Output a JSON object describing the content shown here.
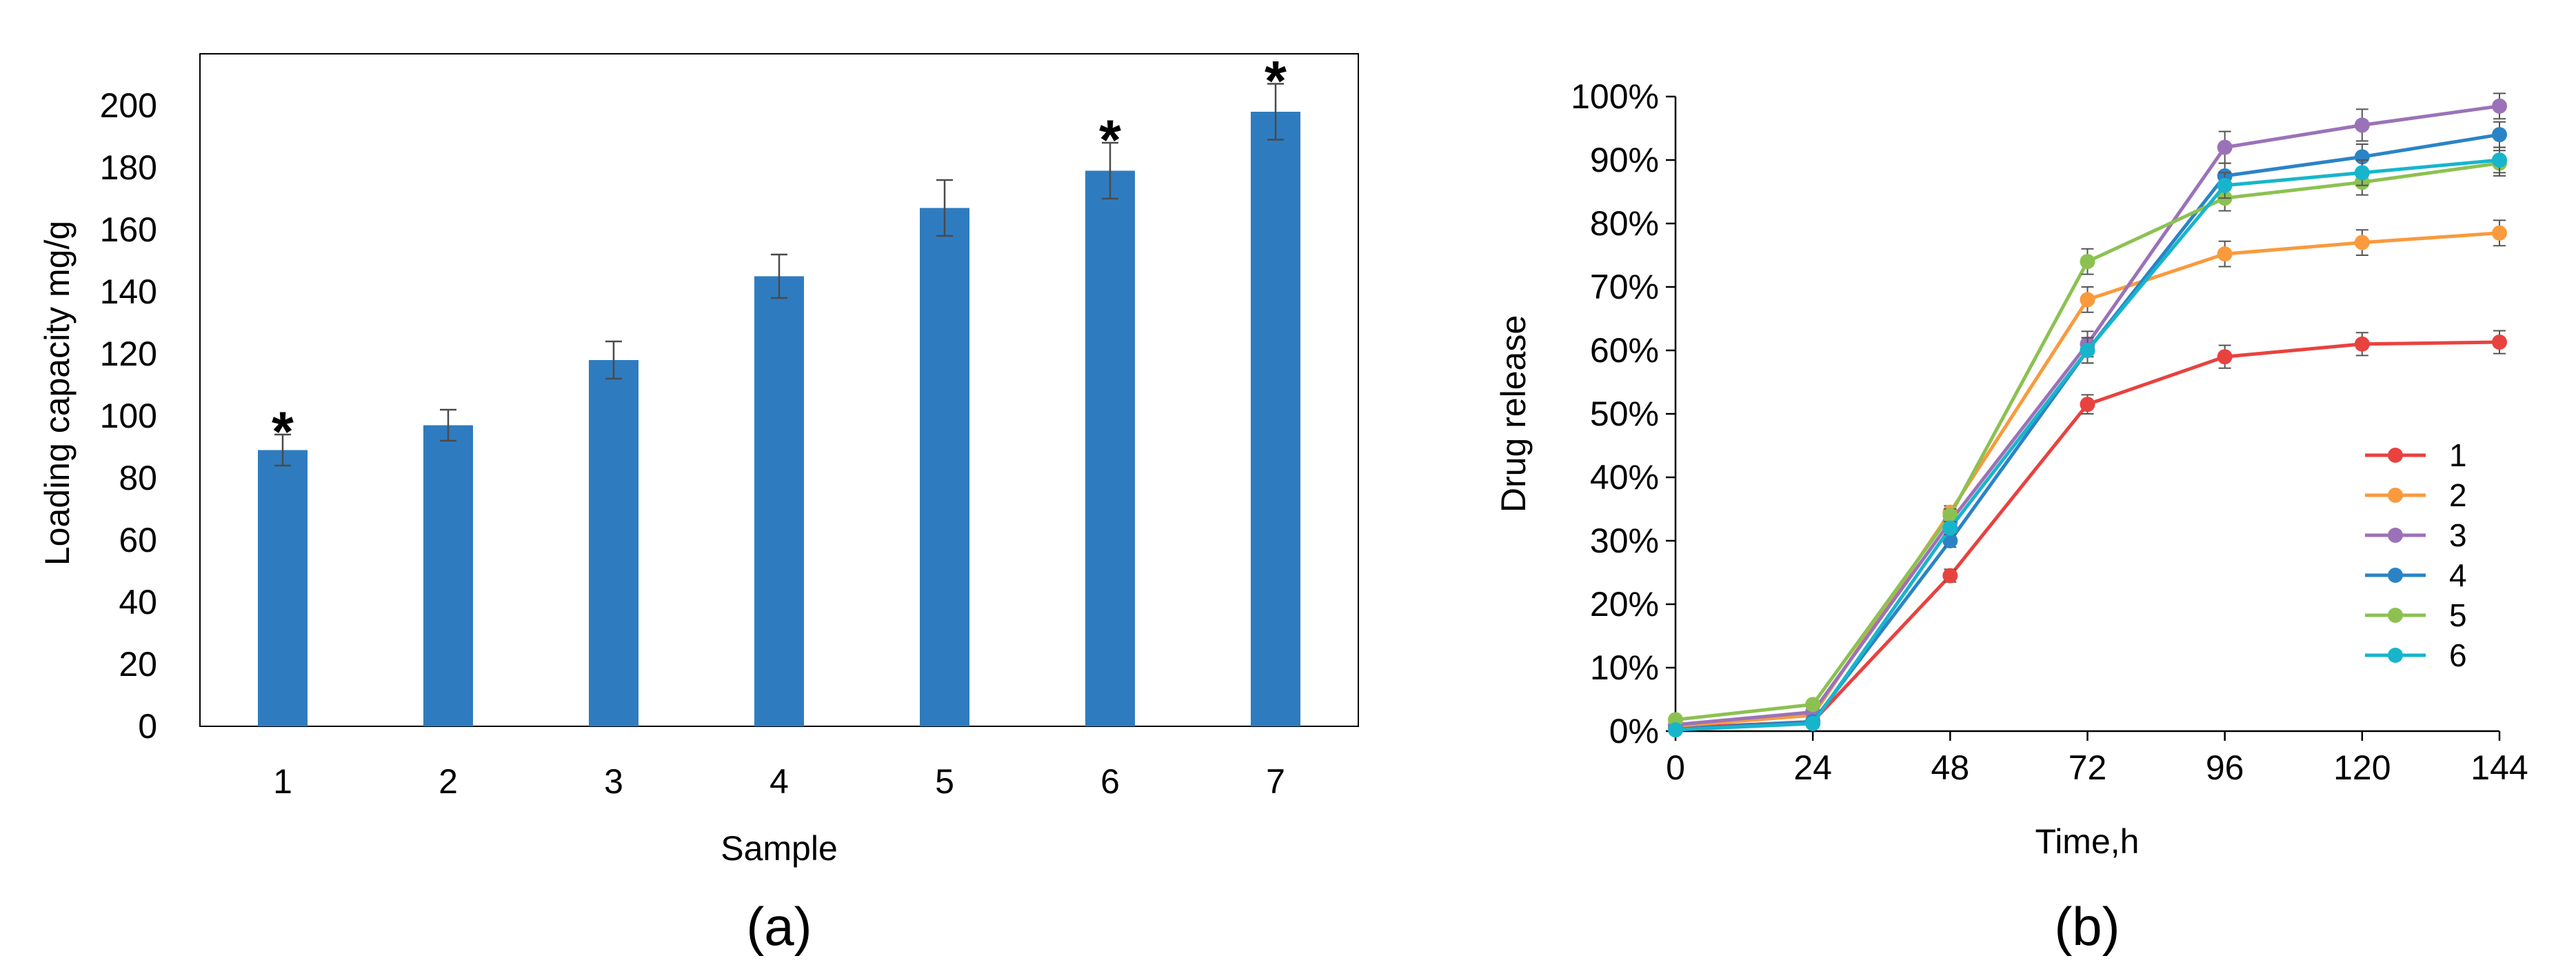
{
  "chart_data": [
    {
      "panel_label": "(a)",
      "type": "bar",
      "xlabel": "Sample",
      "ylabel": "Loading capacity mg/g",
      "categories": [
        "1",
        "2",
        "3",
        "4",
        "5",
        "6",
        "7"
      ],
      "values": [
        89,
        97,
        118,
        145,
        167,
        179,
        198
      ],
      "error": [
        5,
        5,
        6,
        7,
        9,
        9,
        9
      ],
      "significance": [
        "*",
        "",
        "",
        "",
        "",
        "*",
        "*"
      ],
      "ylim": [
        0,
        200
      ],
      "yticks": [
        "0",
        "20",
        "40",
        "60",
        "80",
        "100",
        "120",
        "140",
        "160",
        "180",
        "200"
      ],
      "bar_color": "#2E7CBF",
      "grid": false
    },
    {
      "panel_label": "(b)",
      "type": "line",
      "xlabel": "Time,h",
      "ylabel": "Drug release",
      "x": [
        0,
        24,
        48,
        72,
        96,
        120,
        144
      ],
      "xticks": [
        "0",
        "24",
        "48",
        "72",
        "96",
        "120",
        "144"
      ],
      "ylim": [
        0,
        100
      ],
      "yticks": [
        "0%",
        "10%",
        "20%",
        "30%",
        "40%",
        "50%",
        "60%",
        "70%",
        "80%",
        "90%",
        "100%"
      ],
      "grid": false,
      "legend_position": "lower-right",
      "series": [
        {
          "name": "1",
          "color": "#E8423F",
          "values": [
            0.5,
            1.5,
            24.5,
            51.5,
            59,
            61,
            61.3
          ],
          "error": [
            0.5,
            0.5,
            1,
            1.5,
            1.8,
            1.8,
            1.8
          ]
        },
        {
          "name": "2",
          "color": "#F99A3D",
          "values": [
            0.8,
            2.5,
            34.5,
            68,
            75.2,
            77,
            78.5
          ],
          "error": [
            0.5,
            0.5,
            1,
            2,
            2,
            2,
            2
          ]
        },
        {
          "name": "3",
          "color": "#9B72B8",
          "values": [
            1,
            3,
            33,
            61,
            92,
            95.5,
            98.5
          ],
          "error": [
            0.5,
            0.5,
            1,
            2,
            2.5,
            2.5,
            2
          ]
        },
        {
          "name": "4",
          "color": "#2B83C6",
          "values": [
            0.3,
            1.5,
            30,
            60,
            87.5,
            90.5,
            94
          ],
          "error": [
            0.5,
            0.5,
            1,
            2,
            2,
            2,
            2
          ]
        },
        {
          "name": "5",
          "color": "#8CC152",
          "values": [
            1.8,
            4.2,
            34,
            74,
            84,
            86.5,
            89.5
          ],
          "error": [
            0.5,
            0.5,
            1,
            2,
            2,
            2,
            2
          ]
        },
        {
          "name": "6",
          "color": "#17B5CC",
          "values": [
            0.2,
            1.2,
            32,
            60,
            86,
            88,
            90
          ],
          "error": [
            0.5,
            0.5,
            1,
            2,
            2,
            2,
            2
          ]
        }
      ]
    }
  ]
}
